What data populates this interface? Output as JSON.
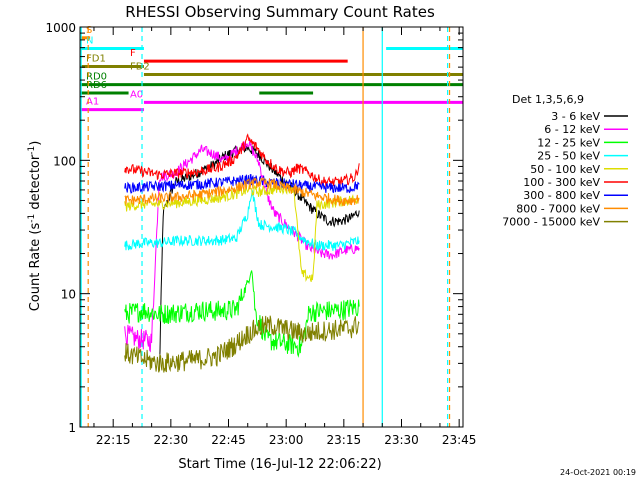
{
  "chart_data": {
    "type": "line",
    "title": "RHESSI Observing Summary Count Rates",
    "xlabel": "Start Time (16-Jul-12 22:06:22)",
    "ylabel_main": "Count Rate (s",
    "ylabel_sup1": "-1",
    "ylabel_mid": " detector",
    "ylabel_sup2": "-1",
    "ylabel_end": ")",
    "ylim": [
      1,
      1000
    ],
    "y_scale": "log",
    "xlim": [
      "22:06:22",
      "23:46:00"
    ],
    "x_tick_labels": [
      "22:15",
      "22:30",
      "22:45",
      "23:00",
      "23:15",
      "23:30",
      "23:45"
    ],
    "x_ticks": [
      "22:15",
      "22:30",
      "22:45",
      "23:00",
      "23:15",
      "23:30",
      "23:45"
    ],
    "y_tick_labels": [
      "1",
      "10",
      "100",
      "1000"
    ],
    "y_ticks": [
      1,
      10,
      100,
      1000
    ],
    "legend_title": "Det 1,3,5,6,9",
    "legend_placement": "right",
    "footer": "24-Oct-2021 00:19",
    "series": [
      {
        "name": "3 - 6 keV",
        "color": "#000000",
        "points": [
          [
            "22:27",
            2.5
          ],
          [
            "22:28",
            40
          ],
          [
            "22:31",
            68
          ],
          [
            "22:36",
            78
          ],
          [
            "22:41",
            92
          ],
          [
            "22:44",
            108
          ],
          [
            "22:47",
            118
          ],
          [
            "22:50",
            125
          ],
          [
            "22:53",
            110
          ],
          [
            "22:56",
            88
          ],
          [
            "22:59",
            72
          ],
          [
            "23:02",
            60
          ],
          [
            "23:05",
            48
          ],
          [
            "23:08",
            40
          ],
          [
            "23:11",
            35
          ],
          [
            "23:14",
            35
          ],
          [
            "23:17",
            37
          ],
          [
            "23:19",
            42
          ]
        ]
      },
      {
        "name": "6 - 12 keV",
        "color": "#ff00ff",
        "points": [
          [
            "22:18",
            5
          ],
          [
            "22:21",
            4.6
          ],
          [
            "22:25",
            4.4
          ],
          [
            "22:27",
            75
          ],
          [
            "22:31",
            80
          ],
          [
            "22:35",
            100
          ],
          [
            "22:38",
            120
          ],
          [
            "22:41",
            112
          ],
          [
            "22:44",
            100
          ],
          [
            "22:47",
            118
          ],
          [
            "22:50",
            138
          ],
          [
            "22:53",
            95
          ],
          [
            "22:55",
            55
          ],
          [
            "22:57",
            40
          ],
          [
            "23:00",
            33
          ],
          [
            "23:03",
            27
          ],
          [
            "23:06",
            22
          ],
          [
            "23:09",
            20
          ],
          [
            "23:12",
            19.5
          ],
          [
            "23:15",
            21
          ],
          [
            "23:19",
            22
          ]
        ]
      },
      {
        "name": "12 - 25 keV",
        "color": "#00ff00",
        "points": [
          [
            "22:18",
            7
          ],
          [
            "22:23",
            7.5
          ],
          [
            "22:27",
            7
          ],
          [
            "22:32",
            7.2
          ],
          [
            "22:37",
            7.5
          ],
          [
            "22:42",
            7.4
          ],
          [
            "22:47",
            7.6
          ],
          [
            "22:50",
            12
          ],
          [
            "22:51",
            16
          ],
          [
            "22:52",
            7.2
          ],
          [
            "22:55",
            4.5
          ],
          [
            "23:00",
            4.2
          ],
          [
            "23:04",
            4
          ],
          [
            "23:06",
            7.3
          ],
          [
            "23:10",
            7.4
          ],
          [
            "23:14",
            7.5
          ],
          [
            "23:19",
            8
          ]
        ]
      },
      {
        "name": "25 - 50 keV",
        "color": "#00ffff",
        "points": [
          [
            "22:18",
            23
          ],
          [
            "22:23",
            24
          ],
          [
            "22:27",
            24
          ],
          [
            "22:32",
            25
          ],
          [
            "22:37",
            25
          ],
          [
            "22:42",
            25
          ],
          [
            "22:47",
            26
          ],
          [
            "22:50",
            40
          ],
          [
            "22:51",
            60
          ],
          [
            "22:53",
            33
          ],
          [
            "22:56",
            32
          ],
          [
            "22:59",
            31
          ],
          [
            "23:02",
            29
          ],
          [
            "23:05",
            25
          ],
          [
            "23:08",
            23
          ],
          [
            "23:11",
            23
          ],
          [
            "23:14",
            23
          ],
          [
            "23:19",
            25
          ]
        ]
      },
      {
        "name": "50 - 100 keV",
        "color": "#dddd00",
        "points": [
          [
            "22:18",
            45
          ],
          [
            "22:23",
            47
          ],
          [
            "22:27",
            47
          ],
          [
            "22:32",
            48
          ],
          [
            "22:37",
            50
          ],
          [
            "22:42",
            52
          ],
          [
            "22:47",
            56
          ],
          [
            "22:50",
            60
          ],
          [
            "22:53",
            58
          ],
          [
            "22:56",
            60
          ],
          [
            "22:59",
            62
          ],
          [
            "23:02",
            62
          ],
          [
            "23:04",
            14
          ],
          [
            "23:07",
            13
          ],
          [
            "23:08",
            46
          ],
          [
            "23:12",
            48
          ],
          [
            "23:16",
            50
          ],
          [
            "23:19",
            52
          ]
        ]
      },
      {
        "name": "100 - 300 keV",
        "color": "#ff0000",
        "points": [
          [
            "22:18",
            88
          ],
          [
            "22:23",
            82
          ],
          [
            "22:27",
            78
          ],
          [
            "22:32",
            80
          ],
          [
            "22:37",
            82
          ],
          [
            "22:42",
            88
          ],
          [
            "22:46",
            100
          ],
          [
            "22:48",
            115
          ],
          [
            "22:50",
            145
          ],
          [
            "22:52",
            128
          ],
          [
            "22:55",
            100
          ],
          [
            "22:58",
            85
          ],
          [
            "23:01",
            80
          ],
          [
            "23:03",
            88
          ],
          [
            "23:06",
            80
          ],
          [
            "23:09",
            70
          ],
          [
            "23:12",
            68
          ],
          [
            "23:15",
            70
          ],
          [
            "23:18",
            75
          ],
          [
            "23:19",
            95
          ]
        ]
      },
      {
        "name": "300 - 800 keV",
        "color": "#0000ff",
        "points": [
          [
            "22:18",
            62
          ],
          [
            "22:23",
            63
          ],
          [
            "22:27",
            64
          ],
          [
            "22:32",
            65
          ],
          [
            "22:37",
            66
          ],
          [
            "22:42",
            68
          ],
          [
            "22:47",
            70
          ],
          [
            "22:50",
            72
          ],
          [
            "22:53",
            70
          ],
          [
            "22:56",
            68
          ],
          [
            "22:59",
            67
          ],
          [
            "23:02",
            66
          ],
          [
            "23:05",
            64
          ],
          [
            "23:08",
            63
          ],
          [
            "23:11",
            62
          ],
          [
            "23:14",
            62
          ],
          [
            "23:17",
            62
          ],
          [
            "23:19",
            66
          ]
        ]
      },
      {
        "name": "800 - 7000 keV",
        "color": "#ff8c00",
        "points": [
          [
            "22:18",
            50
          ],
          [
            "22:23",
            51
          ],
          [
            "22:27",
            52
          ],
          [
            "22:32",
            53
          ],
          [
            "22:37",
            55
          ],
          [
            "22:42",
            58
          ],
          [
            "22:47",
            62
          ],
          [
            "22:50",
            66
          ],
          [
            "22:53",
            68
          ],
          [
            "22:56",
            67
          ],
          [
            "22:59",
            63
          ],
          [
            "23:02",
            60
          ],
          [
            "23:05",
            57
          ],
          [
            "23:08",
            54
          ],
          [
            "23:11",
            52
          ],
          [
            "23:14",
            50
          ],
          [
            "23:17",
            50
          ],
          [
            "23:19",
            52
          ]
        ]
      },
      {
        "name": "7000 - 15000 keV",
        "color": "#808000",
        "points": [
          [
            "22:18",
            3.6
          ],
          [
            "22:23",
            3.2
          ],
          [
            "22:27",
            3
          ],
          [
            "22:32",
            3.1
          ],
          [
            "22:37",
            3.2
          ],
          [
            "22:42",
            3.4
          ],
          [
            "22:47",
            4.2
          ],
          [
            "22:50",
            5
          ],
          [
            "22:53",
            5.6
          ],
          [
            "22:56",
            5.8
          ],
          [
            "22:59",
            5.5
          ],
          [
            "23:02",
            5.2
          ],
          [
            "23:05",
            5
          ],
          [
            "23:08",
            5.2
          ],
          [
            "23:11",
            5.3
          ],
          [
            "23:14",
            5.4
          ],
          [
            "23:17",
            5.5
          ],
          [
            "23:19",
            6
          ]
        ]
      }
    ],
    "flag_bars": [
      {
        "label": "S",
        "color": "#ff8c00",
        "y": 830,
        "segments": [
          [
            "22:06:22",
            "22:09"
          ]
        ]
      },
      {
        "label": "N",
        "color": "#00ffff",
        "y": 690,
        "segments": [
          [
            "22:06:22",
            "22:23"
          ],
          [
            "23:26",
            "23:46"
          ]
        ]
      },
      {
        "label": "F",
        "color": "#ff0000",
        "y": 555,
        "segments": [
          [
            "22:23",
            "23:16"
          ]
        ]
      },
      {
        "label": "FD1",
        "color": "#808000",
        "y": 505,
        "segments": [
          [
            "22:06:22",
            "22:23"
          ]
        ]
      },
      {
        "label": "FD2",
        "color": "#808000",
        "y": 440,
        "segments": [
          [
            "22:23",
            "23:46"
          ]
        ]
      },
      {
        "label": "RD0",
        "color": "#008000",
        "y": 370,
        "segments": [
          [
            "22:06:22",
            "23:46"
          ]
        ]
      },
      {
        "label": "RD6",
        "color": "#008000",
        "y": 320,
        "segments": [
          [
            "22:06:22",
            "22:19"
          ],
          [
            "22:53",
            "23:07"
          ]
        ]
      },
      {
        "label": "A0",
        "color": "#ff00ff",
        "y": 272,
        "segments": [
          [
            "22:23",
            "23:46"
          ]
        ]
      },
      {
        "label": "A1",
        "color": "#ff00ff",
        "y": 240,
        "segments": [
          [
            "22:06:22",
            "22:23"
          ]
        ]
      }
    ],
    "vertical_markers": [
      {
        "time": "22:06:40",
        "color": "#00ffff",
        "style": "solid"
      },
      {
        "time": "22:08:30",
        "color": "#ff8c00",
        "style": "dashed"
      },
      {
        "time": "22:22:30",
        "color": "#00ffff",
        "style": "dashed"
      },
      {
        "time": "23:20",
        "color": "#ff8c00",
        "style": "solid"
      },
      {
        "time": "23:25",
        "color": "#00ffff",
        "style": "solid"
      },
      {
        "time": "23:42",
        "color": "#00ffff",
        "style": "dashed"
      },
      {
        "time": "23:42:30",
        "color": "#ff8c00",
        "style": "dashed"
      }
    ]
  }
}
